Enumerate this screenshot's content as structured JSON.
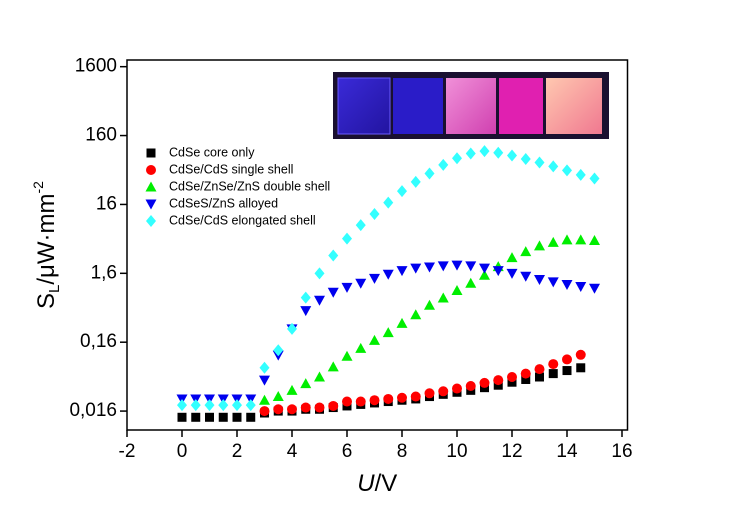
{
  "chart_data": {
    "type": "scatter",
    "xlabel": {
      "italic": "U",
      "rest": "/V"
    },
    "ylabel": {
      "main": "S",
      "sub": "L",
      "rest": "/μW·mm",
      "sup": "-2"
    },
    "xlim": [
      -2,
      16.2
    ],
    "ylim": [
      0.0085,
      2000
    ],
    "log_y": true,
    "grid": false,
    "legend": "upper left",
    "xticks": [
      -2,
      0,
      2,
      4,
      6,
      8,
      10,
      12,
      14,
      16
    ],
    "yticks": [
      {
        "value": 0.016,
        "label": "0,016"
      },
      {
        "value": 0.16,
        "label": "0,16"
      },
      {
        "value": 1.6,
        "label": "1,6"
      },
      16,
      160,
      1600
    ],
    "series": [
      {
        "name": "CdSe core only",
        "color": "#000000",
        "marker": "square",
        "x": [
          0,
          0.5,
          1,
          1.5,
          2,
          2.5,
          3,
          3.5,
          4,
          4.5,
          5,
          5.5,
          6,
          6.5,
          7,
          7.5,
          8,
          8.5,
          9,
          9.5,
          10,
          10.5,
          11,
          11.5,
          12,
          12.5,
          13,
          13.5,
          14,
          14.5
        ],
        "values": [
          0.013,
          0.013,
          0.013,
          0.013,
          0.013,
          0.013,
          0.015,
          0.016,
          0.016,
          0.017,
          0.017,
          0.018,
          0.019,
          0.02,
          0.021,
          0.022,
          0.023,
          0.024,
          0.026,
          0.028,
          0.03,
          0.032,
          0.035,
          0.038,
          0.042,
          0.046,
          0.05,
          0.056,
          0.062,
          0.068
        ]
      },
      {
        "name": "CdSe/CdS single shell",
        "color": "#ff0000",
        "marker": "circle",
        "x": [
          3,
          3.5,
          4,
          4.5,
          5,
          5.5,
          6,
          6.5,
          7,
          7.5,
          8,
          8.5,
          9,
          9.5,
          10,
          10.5,
          11,
          11.5,
          12,
          12.5,
          13,
          13.5,
          14,
          14.5
        ],
        "values": [
          0.016,
          0.017,
          0.017,
          0.018,
          0.018,
          0.019,
          0.022,
          0.022,
          0.023,
          0.024,
          0.025,
          0.026,
          0.029,
          0.031,
          0.034,
          0.037,
          0.041,
          0.045,
          0.05,
          0.056,
          0.065,
          0.077,
          0.09,
          0.105
        ]
      },
      {
        "name": "CdSe/ZnSe/ZnS double shell",
        "color": "#00ee00",
        "marker": "triangle-up",
        "x": [
          3,
          3.5,
          4,
          4.5,
          5,
          5.5,
          6,
          6.5,
          7,
          7.5,
          8,
          8.5,
          9,
          9.5,
          10,
          10.5,
          11,
          11.5,
          12,
          12.5,
          13,
          13.5,
          14,
          14.5,
          15
        ],
        "values": [
          0.023,
          0.026,
          0.032,
          0.04,
          0.05,
          0.07,
          0.1,
          0.13,
          0.17,
          0.22,
          0.3,
          0.4,
          0.55,
          0.7,
          0.9,
          1.15,
          1.5,
          2.0,
          2.7,
          3.3,
          4.0,
          4.5,
          4.9,
          4.9,
          4.8
        ]
      },
      {
        "name": "CdSeS/ZnS alloyed",
        "color": "#0000ee",
        "marker": "triangle-down",
        "x": [
          0,
          0.5,
          1,
          1.5,
          2,
          2.5,
          3,
          3.5,
          4,
          4.5,
          5,
          5.5,
          6,
          6.5,
          7,
          7.5,
          8,
          8.5,
          9,
          9.5,
          10,
          10.5,
          11,
          11.5,
          12,
          12.5,
          13,
          13.5,
          14,
          14.5,
          15
        ],
        "values": [
          0.024,
          0.024,
          0.024,
          0.024,
          0.024,
          0.024,
          0.045,
          0.104,
          0.25,
          0.46,
          0.65,
          0.85,
          1.0,
          1.15,
          1.35,
          1.55,
          1.75,
          1.9,
          1.98,
          2.05,
          2.1,
          2.05,
          1.9,
          1.75,
          1.6,
          1.45,
          1.3,
          1.2,
          1.1,
          1.03,
          0.97
        ]
      },
      {
        "name": "CdSe/CdS elongated shell",
        "color": "#33ffff",
        "marker": "diamond",
        "x": [
          0,
          0.5,
          1,
          1.5,
          2,
          2.5,
          3,
          3.5,
          4,
          4.5,
          5,
          5.5,
          6,
          6.5,
          7,
          7.5,
          8,
          8.5,
          9,
          9.5,
          10,
          10.5,
          11,
          11.5,
          12,
          12.5,
          13,
          13.5,
          14,
          14.5,
          15
        ],
        "values": [
          0.0195,
          0.0195,
          0.0195,
          0.0195,
          0.0195,
          0.0195,
          0.068,
          0.122,
          0.25,
          0.71,
          1.6,
          2.9,
          5.1,
          8,
          11.6,
          17,
          25,
          34,
          45,
          60,
          75,
          88,
          95,
          90,
          82,
          73,
          65,
          57,
          50,
          43,
          38
        ]
      }
    ]
  }
}
